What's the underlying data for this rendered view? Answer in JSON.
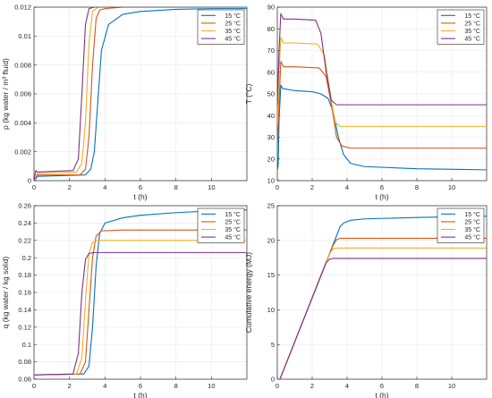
{
  "colors": {
    "axis": "#262626",
    "grid": "#e6e6e6",
    "frame": "#ffffff"
  },
  "series_colors": [
    "#0072bd",
    "#d95319",
    "#edb120",
    "#7e2f8e"
  ],
  "chart_data": [
    {
      "type": "line",
      "xlabel": "t (h)",
      "ylabel": "ρ (kg water / m³ fluid)",
      "xlim": [
        0,
        12
      ],
      "ylim": [
        0,
        0.012
      ],
      "xticks": [
        0,
        2,
        4,
        6,
        8,
        10
      ],
      "xtick_labels": [
        "0",
        "2",
        "4",
        "6",
        "8",
        "10"
      ],
      "yticks": [
        0,
        0.002,
        0.004,
        0.006,
        0.008,
        0.01,
        0.012
      ],
      "ytick_labels": [
        "0",
        "0.002",
        "0.004",
        "0.006",
        "0.008",
        "0.01",
        "0.012"
      ],
      "grid": true,
      "legend_position": "top-right",
      "series": [
        {
          "name": "15 °C",
          "x": [
            0,
            0.15,
            0.2,
            2.9,
            3.2,
            3.4,
            3.6,
            3.8,
            4.2,
            5,
            6,
            8,
            10,
            12
          ],
          "y": [
            0,
            0.0002,
            0.0003,
            0.0004,
            0.0008,
            0.002,
            0.0055,
            0.009,
            0.0108,
            0.0115,
            0.0117,
            0.01185,
            0.0119,
            0.0119
          ]
        },
        {
          "name": "25 °C",
          "x": [
            0,
            0.15,
            0.2,
            2.6,
            2.9,
            3.1,
            3.3,
            3.5,
            3.7,
            4,
            5,
            12
          ],
          "y": [
            0,
            0.0003,
            0.0004,
            0.0004,
            0.0008,
            0.003,
            0.008,
            0.0112,
            0.0118,
            0.0119,
            0.012,
            0.012
          ]
        },
        {
          "name": "35 °C",
          "x": [
            0,
            0.15,
            0.2,
            2.4,
            2.7,
            2.9,
            3.1,
            3.3,
            3.6,
            4,
            12
          ],
          "y": [
            0,
            0.0004,
            0.0005,
            0.0006,
            0.0012,
            0.004,
            0.0095,
            0.0117,
            0.012,
            0.012,
            0.012
          ]
        },
        {
          "name": "45 °C",
          "x": [
            0,
            0.1,
            0.18,
            2.2,
            2.5,
            2.7,
            2.9,
            3.1,
            3.4,
            12
          ],
          "y": [
            0,
            0.0007,
            0.0006,
            0.0007,
            0.0015,
            0.006,
            0.0108,
            0.0119,
            0.012,
            0.012
          ]
        }
      ]
    },
    {
      "type": "line",
      "xlabel": "t (h)",
      "ylabel": "T (°C)",
      "xlim": [
        0,
        12
      ],
      "ylim": [
        10,
        90
      ],
      "xticks": [
        0,
        2,
        4,
        6,
        8,
        10
      ],
      "xtick_labels": [
        "0",
        "2",
        "4",
        "6",
        "8",
        "10"
      ],
      "yticks": [
        10,
        20,
        30,
        40,
        50,
        60,
        70,
        80,
        90
      ],
      "ytick_labels": [
        "10",
        "20",
        "30",
        "40",
        "50",
        "60",
        "70",
        "80",
        "90"
      ],
      "grid": true,
      "legend_position": "top-right",
      "series": [
        {
          "name": "15 °C",
          "x": [
            0,
            0.05,
            0.1,
            0.2,
            0.3,
            1,
            2,
            2.5,
            2.9,
            3.2,
            3.5,
            3.8,
            4.2,
            5,
            8,
            12
          ],
          "y": [
            15,
            17,
            38,
            54,
            52.5,
            51.5,
            51,
            50,
            48,
            42,
            30,
            22,
            18,
            16.5,
            15.5,
            15
          ]
        },
        {
          "name": "25 °C",
          "x": [
            0,
            0.1,
            0.2,
            0.35,
            1,
            2.4,
            2.8,
            3.1,
            3.4,
            3.7,
            4.2,
            12
          ],
          "y": [
            25,
            45,
            65,
            62.5,
            62.5,
            62,
            58,
            45,
            30,
            26,
            25,
            25
          ]
        },
        {
          "name": "35 °C",
          "x": [
            0,
            0.1,
            0.2,
            0.35,
            1,
            2.3,
            2.7,
            3,
            3.3,
            3.6,
            12
          ],
          "y": [
            35,
            60,
            76,
            73.5,
            73.5,
            73,
            68,
            52,
            37,
            35,
            35
          ]
        },
        {
          "name": "45 °C",
          "x": [
            0,
            0.1,
            0.2,
            0.35,
            1,
            2.2,
            2.5,
            2.8,
            3.1,
            3.4,
            12
          ],
          "y": [
            45,
            70,
            87,
            84.5,
            84.5,
            84,
            78,
            60,
            47,
            45,
            45
          ]
        }
      ]
    },
    {
      "type": "line",
      "xlabel": "t (h)",
      "ylabel": "q (kg water / kg solid)",
      "xlim": [
        0,
        12
      ],
      "ylim": [
        0.06,
        0.26
      ],
      "xticks": [
        0,
        2,
        4,
        6,
        8,
        10
      ],
      "xtick_labels": [
        "0",
        "2",
        "4",
        "6",
        "8",
        "10"
      ],
      "yticks": [
        0.06,
        0.08,
        0.1,
        0.12,
        0.14,
        0.16,
        0.18,
        0.2,
        0.22,
        0.24,
        0.26
      ],
      "ytick_labels": [
        "0.06",
        "0.08",
        "0.1",
        "0.12",
        "0.14",
        "0.16",
        "0.18",
        "0.2",
        "0.22",
        "0.24",
        "0.26"
      ],
      "grid": true,
      "legend_position": "top-right",
      "series": [
        {
          "name": "15 °C",
          "x": [
            0,
            2.8,
            3.1,
            3.3,
            3.5,
            3.7,
            4,
            5,
            6,
            8,
            10,
            12
          ],
          "y": [
            0.065,
            0.066,
            0.075,
            0.12,
            0.19,
            0.228,
            0.24,
            0.246,
            0.249,
            0.252,
            0.254,
            0.255
          ]
        },
        {
          "name": "25 °C",
          "x": [
            0,
            2.6,
            2.9,
            3.1,
            3.3,
            3.5,
            3.8,
            5,
            12
          ],
          "y": [
            0.065,
            0.066,
            0.08,
            0.14,
            0.2,
            0.225,
            0.231,
            0.232,
            0.232
          ]
        },
        {
          "name": "35 °C",
          "x": [
            0,
            2.4,
            2.7,
            2.9,
            3.1,
            3.3,
            3.6,
            12
          ],
          "y": [
            0.065,
            0.066,
            0.085,
            0.15,
            0.205,
            0.218,
            0.22,
            0.22
          ]
        },
        {
          "name": "45 °C",
          "x": [
            0,
            2.2,
            2.5,
            2.7,
            2.9,
            3.1,
            3.4,
            12
          ],
          "y": [
            0.065,
            0.066,
            0.09,
            0.16,
            0.198,
            0.205,
            0.206,
            0.206
          ]
        }
      ]
    },
    {
      "type": "line",
      "xlabel": "t (h)",
      "ylabel": "Cumulative energy (MJ)",
      "xlim": [
        0,
        12
      ],
      "ylim": [
        0,
        25
      ],
      "xticks": [
        0,
        2,
        4,
        6,
        8,
        10
      ],
      "xtick_labels": [
        "0",
        "2",
        "4",
        "6",
        "8",
        "10"
      ],
      "yticks": [
        0,
        5,
        10,
        15,
        20,
        25
      ],
      "ytick_labels": [
        "0",
        "5",
        "10",
        "15",
        "20",
        "25"
      ],
      "grid": true,
      "legend_position": "top-right",
      "series": [
        {
          "name": "15 °C",
          "x": [
            0,
            0.15,
            3.4,
            3.6,
            3.8,
            4.2,
            5,
            8,
            12
          ],
          "y": [
            0,
            0,
            20.7,
            22,
            22.5,
            22.9,
            23.1,
            23.3,
            23.5
          ]
        },
        {
          "name": "25 °C",
          "x": [
            0,
            0.15,
            3.2,
            3.4,
            3.6,
            4,
            12
          ],
          "y": [
            0,
            0,
            19.3,
            20.1,
            20.3,
            20.3,
            20.3
          ]
        },
        {
          "name": "35 °C",
          "x": [
            0,
            0.15,
            3,
            3.2,
            3.4,
            12
          ],
          "y": [
            0,
            0,
            18.1,
            18.8,
            18.9,
            18.9
          ]
        },
        {
          "name": "45 °C",
          "x": [
            0,
            0.15,
            2.8,
            3,
            3.2,
            12
          ],
          "y": [
            0,
            0,
            16.8,
            17.3,
            17.4,
            17.4
          ]
        }
      ]
    }
  ]
}
